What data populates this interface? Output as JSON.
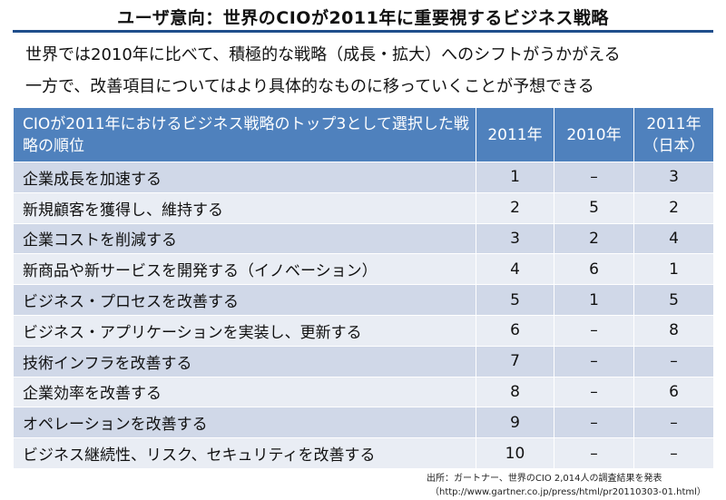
{
  "title": "ユーザ意向：世界のCIOが2011年に重要視するビジネス戦略",
  "subtitle_line1": "世界では2010年に比べて、積極的な戦略（成長・拡大）へのシフトがうかがえる",
  "subtitle_line2": "一方で、改善項目についてはより具体的なものに移っていくことが予想できる",
  "table": {
    "header": {
      "label": "CIOが2011年におけるビジネス戦略のトップ3として選択した戦略の順位",
      "col_2011": "2011年",
      "col_2010": "2010年",
      "col_2011_japan_line1": "2011年",
      "col_2011_japan_line2": "（日本）"
    },
    "rows": [
      {
        "strategy": "企業成長を加速する",
        "y2011": "1",
        "y2010": "–",
        "y2011_japan": "3"
      },
      {
        "strategy": "新規顧客を獲得し、維持する",
        "y2011": "2",
        "y2010": "5",
        "y2011_japan": "2"
      },
      {
        "strategy": "企業コストを削減する",
        "y2011": "3",
        "y2010": "2",
        "y2011_japan": "4"
      },
      {
        "strategy": "新商品や新サービスを開発する（イノベーション）",
        "y2011": "4",
        "y2010": "6",
        "y2011_japan": "1"
      },
      {
        "strategy": "ビジネス・プロセスを改善する",
        "y2011": "5",
        "y2010": "1",
        "y2011_japan": "5"
      },
      {
        "strategy": "ビジネス・アプリケーションを実装し、更新する",
        "y2011": "6",
        "y2010": "–",
        "y2011_japan": "8"
      },
      {
        "strategy": "技術インフラを改善する",
        "y2011": "7",
        "y2010": "–",
        "y2011_japan": "–"
      },
      {
        "strategy": "企業効率を改善する",
        "y2011": "8",
        "y2010": "–",
        "y2011_japan": "6"
      },
      {
        "strategy": "オペレーションを改善する",
        "y2011": "9",
        "y2010": "–",
        "y2011_japan": "–"
      },
      {
        "strategy": "ビジネス継続性、リスク、セキュリティを改善する",
        "y2011": "10",
        "y2010": "–",
        "y2011_japan": "–"
      }
    ]
  },
  "source_line1": "出所：ガートナー、世界のCIO 2,014人の調査結果を発表",
  "source_line2": "（http://www.gartner.co.jp/press/html/pr20110303-01.html）",
  "colors": {
    "header_bg": "#4f81bd",
    "row_odd": "#d0d8e8",
    "row_even": "#e9edf4",
    "title_rule": "#1f4e8c"
  }
}
